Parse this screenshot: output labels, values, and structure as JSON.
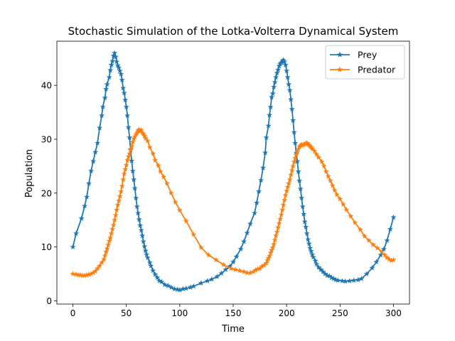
{
  "chart_data": {
    "type": "line",
    "title": "Stochastic Simulation of the Lotka-Volterra Dynamical System",
    "xlabel": "Time",
    "ylabel": "Population",
    "xlim": [
      -15,
      315
    ],
    "ylim": [
      -0.6,
      48.2
    ],
    "xticks": [
      0,
      50,
      100,
      150,
      200,
      250,
      300
    ],
    "yticks": [
      0,
      10,
      20,
      30,
      40
    ],
    "legend": "top-right",
    "grid": false,
    "marker": "star",
    "series": [
      {
        "name": "Prey",
        "color": "#1f77b4",
        "points": [
          [
            0,
            10.0
          ],
          [
            3,
            12.5
          ],
          [
            8,
            15.3
          ],
          [
            11,
            17.6
          ],
          [
            13,
            19.3
          ],
          [
            15,
            21.8
          ],
          [
            17,
            24.1
          ],
          [
            19,
            25.9
          ],
          [
            21,
            27.6
          ],
          [
            23,
            29.3
          ],
          [
            25,
            32.1
          ],
          [
            27,
            34.4
          ],
          [
            28,
            36.0
          ],
          [
            30,
            37.7
          ],
          [
            31,
            39.3
          ],
          [
            32,
            40.2
          ],
          [
            34,
            41.5
          ],
          [
            35,
            42.8
          ],
          [
            36,
            43.8
          ],
          [
            37,
            44.5
          ],
          [
            38,
            45.5
          ],
          [
            39,
            46.0
          ],
          [
            40,
            45.3
          ],
          [
            41,
            44.4
          ],
          [
            42,
            43.7
          ],
          [
            43,
            43.3
          ],
          [
            44,
            42.7
          ],
          [
            45,
            42.1
          ],
          [
            46,
            41.0
          ],
          [
            47,
            39.5
          ],
          [
            48,
            38.6
          ],
          [
            49,
            37.3
          ],
          [
            50,
            36.0
          ],
          [
            51,
            34.4
          ],
          [
            52,
            32.2
          ],
          [
            53,
            30.3
          ],
          [
            54,
            28.1
          ],
          [
            55,
            26.0
          ],
          [
            56,
            24.1
          ],
          [
            57,
            22.5
          ],
          [
            58,
            20.9
          ],
          [
            59,
            19.1
          ],
          [
            60,
            17.5
          ],
          [
            61,
            16.3
          ],
          [
            62,
            15.1
          ],
          [
            63,
            14.0
          ],
          [
            64,
            13.1
          ],
          [
            65,
            12.1
          ],
          [
            66,
            11.0
          ],
          [
            67,
            10.1
          ],
          [
            68,
            9.3
          ],
          [
            69,
            8.6
          ],
          [
            70,
            8.0
          ],
          [
            72,
            7.1
          ],
          [
            73,
            6.5
          ],
          [
            75,
            5.6
          ],
          [
            77,
            4.9
          ],
          [
            79,
            4.3
          ],
          [
            81,
            3.7
          ],
          [
            83,
            3.5
          ],
          [
            86,
            3.0
          ],
          [
            89,
            2.8
          ],
          [
            92,
            2.5
          ],
          [
            95,
            2.2
          ],
          [
            98,
            2.1
          ],
          [
            100,
            2.0
          ],
          [
            103,
            2.2
          ],
          [
            106,
            2.3
          ],
          [
            110,
            2.5
          ],
          [
            113,
            2.7
          ],
          [
            120,
            3.3
          ],
          [
            126,
            3.7
          ],
          [
            130,
            4.0
          ],
          [
            135,
            4.5
          ],
          [
            139,
            5.1
          ],
          [
            143,
            5.8
          ],
          [
            147,
            6.4
          ],
          [
            150,
            7.2
          ],
          [
            153,
            8.2
          ],
          [
            157,
            9.6
          ],
          [
            160,
            11.0
          ],
          [
            163,
            12.6
          ],
          [
            166,
            14.3
          ],
          [
            170,
            16.3
          ],
          [
            172,
            18.2
          ],
          [
            174,
            20.3
          ],
          [
            176,
            22.4
          ],
          [
            178,
            24.7
          ],
          [
            180,
            27.5
          ],
          [
            181,
            30.3
          ],
          [
            183,
            32.5
          ],
          [
            184,
            34.5
          ],
          [
            185,
            36.0
          ],
          [
            186,
            37.8
          ],
          [
            187,
            38.5
          ],
          [
            188,
            39.7
          ],
          [
            189,
            40.6
          ],
          [
            190,
            41.5
          ],
          [
            191,
            42.3
          ],
          [
            192,
            42.9
          ],
          [
            193,
            43.6
          ],
          [
            194,
            44.0
          ],
          [
            195,
            44.2
          ],
          [
            196,
            44.5
          ],
          [
            197,
            44.7
          ],
          [
            198,
            44.4
          ],
          [
            199,
            43.8
          ],
          [
            200,
            42.7
          ],
          [
            201,
            41.5
          ],
          [
            202,
            40.2
          ],
          [
            203,
            39.1
          ],
          [
            204,
            37.4
          ],
          [
            205,
            35.6
          ],
          [
            206,
            33.5
          ],
          [
            207,
            31.3
          ],
          [
            208,
            29.3
          ],
          [
            209,
            27.4
          ],
          [
            210,
            25.9
          ],
          [
            211,
            24.0
          ],
          [
            212,
            22.3
          ],
          [
            213,
            20.8
          ],
          [
            214,
            19.1
          ],
          [
            215,
            17.5
          ],
          [
            216,
            16.1
          ],
          [
            217,
            14.7
          ],
          [
            218,
            13.7
          ],
          [
            219,
            12.5
          ],
          [
            220,
            11.4
          ],
          [
            221,
            10.6
          ],
          [
            222,
            9.8
          ],
          [
            223,
            9.2
          ],
          [
            224,
            8.6
          ],
          [
            225,
            8.1
          ],
          [
            227,
            7.4
          ],
          [
            228,
            6.8
          ],
          [
            230,
            6.2
          ],
          [
            232,
            5.8
          ],
          [
            234,
            5.4
          ],
          [
            236,
            5.0
          ],
          [
            238,
            4.7
          ],
          [
            240,
            4.6
          ],
          [
            242,
            4.3
          ],
          [
            244,
            4.1
          ],
          [
            246,
            3.9
          ],
          [
            248,
            3.8
          ],
          [
            252,
            3.7
          ],
          [
            255,
            3.6
          ],
          [
            259,
            3.7
          ],
          [
            263,
            3.8
          ],
          [
            267,
            3.9
          ],
          [
            270,
            4.1
          ],
          [
            275,
            5.0
          ],
          [
            280,
            6.1
          ],
          [
            284,
            7.2
          ],
          [
            288,
            8.5
          ],
          [
            291,
            9.6
          ],
          [
            294,
            11.2
          ],
          [
            297,
            13.3
          ],
          [
            300,
            15.5
          ]
        ]
      },
      {
        "name": "Predator",
        "color": "#ff7f0e",
        "points": [
          [
            0,
            5.0
          ],
          [
            3,
            4.9
          ],
          [
            5,
            4.8
          ],
          [
            7,
            4.8
          ],
          [
            9,
            4.7
          ],
          [
            11,
            4.7
          ],
          [
            13,
            4.8
          ],
          [
            15,
            4.9
          ],
          [
            17,
            5.0
          ],
          [
            19,
            5.2
          ],
          [
            21,
            5.5
          ],
          [
            23,
            6.0
          ],
          [
            25,
            6.5
          ],
          [
            27,
            7.1
          ],
          [
            29,
            7.7
          ],
          [
            30,
            8.4
          ],
          [
            31,
            9.1
          ],
          [
            32,
            9.7
          ],
          [
            33,
            10.4
          ],
          [
            34,
            11.1
          ],
          [
            35,
            11.7
          ],
          [
            36,
            12.5
          ],
          [
            37,
            13.3
          ],
          [
            38,
            14.1
          ],
          [
            39,
            15.0
          ],
          [
            40,
            15.9
          ],
          [
            41,
            16.9
          ],
          [
            42,
            17.8
          ],
          [
            43,
            18.6
          ],
          [
            44,
            19.4
          ],
          [
            45,
            20.3
          ],
          [
            46,
            21.3
          ],
          [
            47,
            22.5
          ],
          [
            48,
            23.6
          ],
          [
            49,
            24.4
          ],
          [
            50,
            25.2
          ],
          [
            51,
            26.1
          ],
          [
            52,
            26.8
          ],
          [
            53,
            27.3
          ],
          [
            54,
            28.0
          ],
          [
            55,
            28.7
          ],
          [
            56,
            29.5
          ],
          [
            57,
            30.1
          ],
          [
            58,
            30.5
          ],
          [
            59,
            30.9
          ],
          [
            60,
            31.2
          ],
          [
            61,
            31.6
          ],
          [
            62,
            31.8
          ],
          [
            63,
            31.5
          ],
          [
            64,
            31.7
          ],
          [
            65,
            31.2
          ],
          [
            66,
            31.0
          ],
          [
            67,
            30.6
          ],
          [
            68,
            30.2
          ],
          [
            70,
            29.7
          ],
          [
            72,
            28.5
          ],
          [
            75,
            27.3
          ],
          [
            77,
            26.1
          ],
          [
            80,
            25.1
          ],
          [
            82,
            24.0
          ],
          [
            85,
            23.0
          ],
          [
            88,
            21.8
          ],
          [
            92,
            20.0
          ],
          [
            96,
            18.3
          ],
          [
            100,
            16.8
          ],
          [
            106,
            14.8
          ],
          [
            113,
            12.3
          ],
          [
            120,
            9.9
          ],
          [
            127,
            8.5
          ],
          [
            134,
            7.6
          ],
          [
            141,
            6.7
          ],
          [
            148,
            6.0
          ],
          [
            152,
            5.8
          ],
          [
            156,
            5.6
          ],
          [
            160,
            5.4
          ],
          [
            163,
            5.2
          ],
          [
            166,
            5.2
          ],
          [
            169,
            5.4
          ],
          [
            171,
            5.7
          ],
          [
            173,
            5.9
          ],
          [
            175,
            6.0
          ],
          [
            177,
            6.4
          ],
          [
            179,
            6.6
          ],
          [
            181,
            7.0
          ],
          [
            182,
            7.5
          ],
          [
            183,
            7.9
          ],
          [
            184,
            8.3
          ],
          [
            185,
            8.9
          ],
          [
            186,
            9.4
          ],
          [
            187,
            9.9
          ],
          [
            188,
            10.5
          ],
          [
            189,
            11.3
          ],
          [
            190,
            12.1
          ],
          [
            191,
            12.8
          ],
          [
            192,
            13.6
          ],
          [
            193,
            14.4
          ],
          [
            194,
            15.2
          ],
          [
            195,
            16.0
          ],
          [
            196,
            16.9
          ],
          [
            197,
            17.8
          ],
          [
            198,
            18.7
          ],
          [
            199,
            19.6
          ],
          [
            200,
            20.4
          ],
          [
            201,
            21.1
          ],
          [
            202,
            21.8
          ],
          [
            203,
            22.5
          ],
          [
            204,
            23.4
          ],
          [
            205,
            24.2
          ],
          [
            206,
            25.0
          ],
          [
            207,
            25.8
          ],
          [
            208,
            26.5
          ],
          [
            209,
            27.1
          ],
          [
            210,
            27.6
          ],
          [
            211,
            28.2
          ],
          [
            212,
            28.6
          ],
          [
            213,
            28.8
          ],
          [
            214,
            29.0
          ],
          [
            215,
            28.9
          ],
          [
            216,
            29.0
          ],
          [
            217,
            29.1
          ],
          [
            218,
            29.2
          ],
          [
            219,
            29.3
          ],
          [
            220,
            29.1
          ],
          [
            221,
            28.9
          ],
          [
            222,
            28.7
          ],
          [
            223,
            28.5
          ],
          [
            224,
            28.2
          ],
          [
            226,
            27.8
          ],
          [
            228,
            27.2
          ],
          [
            230,
            26.6
          ],
          [
            233,
            25.8
          ],
          [
            235,
            25.0
          ],
          [
            237,
            24.0
          ],
          [
            239,
            23.1
          ],
          [
            241,
            22.3
          ],
          [
            243,
            21.4
          ],
          [
            245,
            20.5
          ],
          [
            247,
            19.7
          ],
          [
            250,
            18.9
          ],
          [
            253,
            17.9
          ],
          [
            256,
            16.9
          ],
          [
            260,
            15.7
          ],
          [
            264,
            14.5
          ],
          [
            269,
            13.2
          ],
          [
            273,
            12.0
          ],
          [
            277,
            11.2
          ],
          [
            281,
            10.4
          ],
          [
            285,
            9.8
          ],
          [
            289,
            9.1
          ],
          [
            292,
            8.5
          ],
          [
            294,
            8.0
          ],
          [
            296,
            7.7
          ],
          [
            298,
            7.5
          ],
          [
            300,
            7.6
          ]
        ]
      }
    ]
  }
}
